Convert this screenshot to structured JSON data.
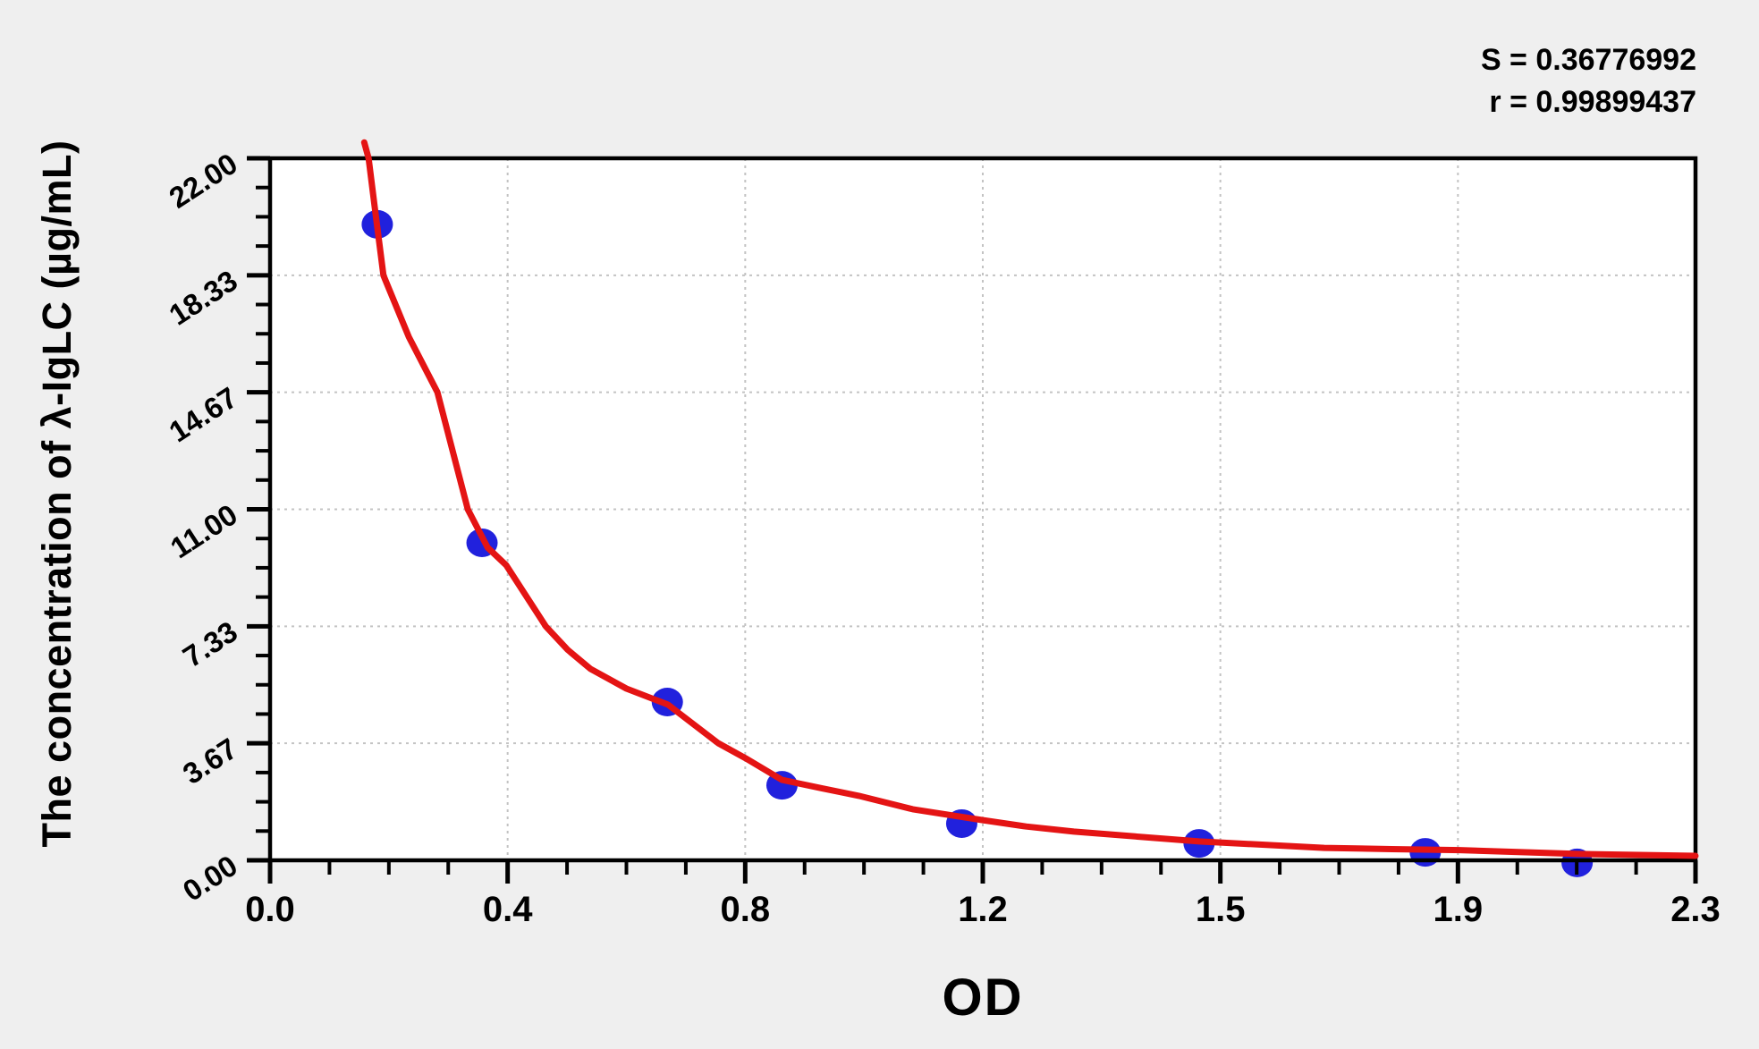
{
  "page": {
    "background": "#efefef",
    "plot_background": "#ffffff"
  },
  "stats": {
    "s_line": "S = 0.36776992",
    "r_line": "r = 0.99899437"
  },
  "chart_data": {
    "type": "scatter",
    "title": "",
    "xlabel": "OD",
    "ylabel": "The concentration of λ-IgLC (µg/mL)",
    "xlim": [
      0,
      2.3
    ],
    "ylim": [
      0,
      22
    ],
    "x_tick_labels": [
      "0.0",
      "0.4",
      "0.8",
      "1.2",
      "1.5",
      "1.9",
      "2.3"
    ],
    "y_tick_labels": [
      "0.00",
      "3.67",
      "7.33",
      "11.00",
      "14.67",
      "18.33",
      "22.00"
    ],
    "grid": "dashed gridlines at major ticks, both axes",
    "legend": "none",
    "series": [
      {
        "name": "standard points",
        "type": "scatter",
        "color": "#2121dd",
        "od": [
          0.173,
          0.342,
          0.641,
          0.826,
          1.116,
          1.499,
          1.864,
          2.109
        ],
        "conc": [
          19.93,
          9.95,
          4.96,
          2.35,
          1.15,
          0.53,
          0.25,
          -0.08
        ]
      },
      {
        "name": "fitted standard curve",
        "type": "line",
        "color": "#e41414",
        "samples": [
          [
            0.152,
            22.5
          ],
          [
            0.159,
            22.0
          ],
          [
            0.17,
            20.3
          ],
          [
            0.183,
            18.33
          ],
          [
            0.224,
            16.4
          ],
          [
            0.27,
            14.67
          ],
          [
            0.319,
            11.0
          ],
          [
            0.351,
            9.8
          ],
          [
            0.381,
            9.25
          ],
          [
            0.445,
            7.33
          ],
          [
            0.48,
            6.6
          ],
          [
            0.517,
            6.0
          ],
          [
            0.575,
            5.38
          ],
          [
            0.642,
            4.88
          ],
          [
            0.723,
            3.67
          ],
          [
            0.767,
            3.2
          ],
          [
            0.826,
            2.52
          ],
          [
            0.89,
            2.26
          ],
          [
            0.95,
            2.02
          ],
          [
            1.037,
            1.6
          ],
          [
            1.149,
            1.26
          ],
          [
            1.22,
            1.06
          ],
          [
            1.297,
            0.9
          ],
          [
            1.499,
            0.59
          ],
          [
            1.701,
            0.39
          ],
          [
            1.81,
            0.35
          ],
          [
            1.92,
            0.32
          ],
          [
            2.11,
            0.2
          ],
          [
            2.3,
            0.14
          ]
        ]
      }
    ],
    "annotations": [
      "S = 0.36776992",
      "r = 0.99899437"
    ],
    "colors": {
      "point": "#2121dd",
      "curve": "#e41414",
      "grid": "#c3c3c3",
      "axis": "#000000"
    }
  }
}
